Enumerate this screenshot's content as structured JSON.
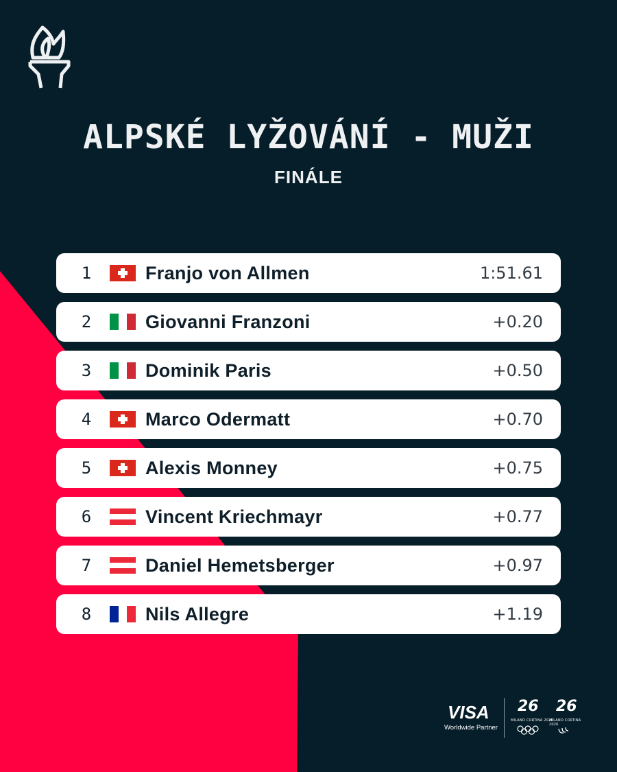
{
  "header": {
    "title": "ALPSKÉ LYŽOVÁNÍ - MUŽI",
    "subtitle": "FINÁLE",
    "logo_icon": "olympic-torch-icon"
  },
  "colors": {
    "background": "#061e29",
    "accent": "#ff0040",
    "row_bg": "#ffffff"
  },
  "results": [
    {
      "rank": "1",
      "country": "SUI",
      "name": "Franjo von Allmen",
      "time": "1:51.61"
    },
    {
      "rank": "2",
      "country": "ITA",
      "name": "Giovanni Franzoni",
      "time": "+0.20"
    },
    {
      "rank": "3",
      "country": "ITA",
      "name": "Dominik Paris",
      "time": "+0.50"
    },
    {
      "rank": "4",
      "country": "SUI",
      "name": "Marco Odermatt",
      "time": "+0.70"
    },
    {
      "rank": "5",
      "country": "SUI",
      "name": "Alexis Monney",
      "time": "+0.75"
    },
    {
      "rank": "6",
      "country": "AUT",
      "name": "Vincent Kriechmayr",
      "time": "+0.77"
    },
    {
      "rank": "7",
      "country": "AUT",
      "name": "Daniel Hemetsberger",
      "time": "+0.97"
    },
    {
      "rank": "8",
      "country": "FRA",
      "name": "Nils Allegre",
      "time": "+1.19"
    }
  ],
  "footer": {
    "sponsor": "VISA",
    "sponsor_tagline": "Worldwide Partner",
    "games_logo": "26",
    "games_name": "MILANO CORTINA 2026"
  }
}
